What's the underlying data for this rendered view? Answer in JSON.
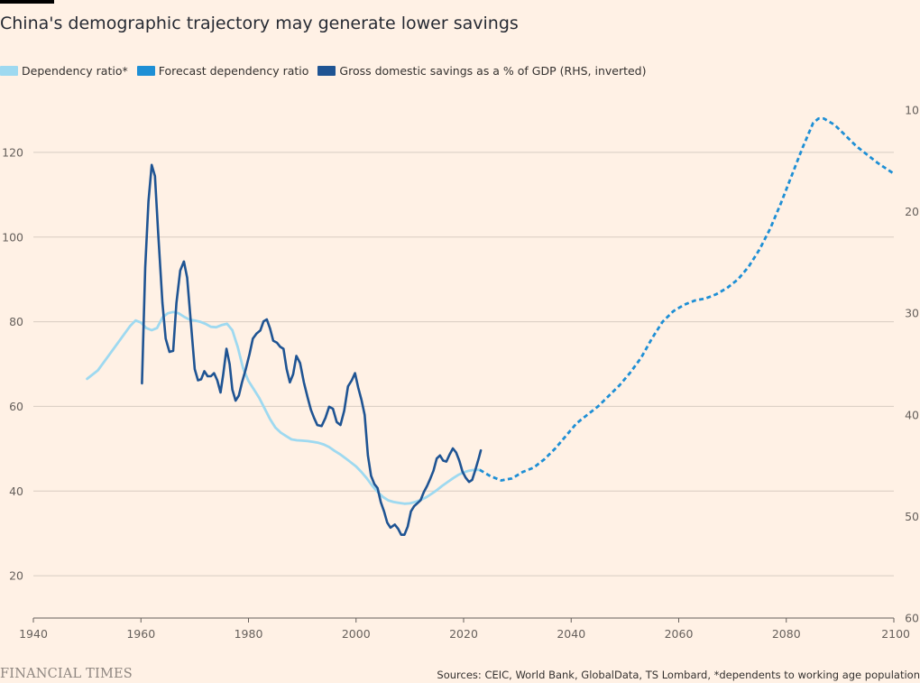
{
  "brand": {
    "logo_text": "FINANCIAL TIMES",
    "bar_color": "#000000"
  },
  "chart_data": {
    "type": "line",
    "title": "China's demographic trajectory may generate lower savings",
    "source": "Sources: CEIC, World Bank, GlobalData, TS Lombard, *dependents to working age population",
    "legend_placement": "top-left",
    "grid": "horizontal",
    "xlabel": "",
    "ylabel": "",
    "xlim": [
      1940,
      2100
    ],
    "x_ticks": [
      1940,
      1960,
      1980,
      2000,
      2020,
      2040,
      2060,
      2080,
      2100
    ],
    "y_left": {
      "lim": [
        10,
        130
      ],
      "ticks": [
        20,
        40,
        60,
        80,
        100,
        120
      ]
    },
    "y_right": {
      "lim": [
        60,
        10
      ],
      "inverted": true,
      "ticks": [
        10,
        20,
        30,
        40,
        50,
        60
      ]
    },
    "series": [
      {
        "name": "Dependency ratio*",
        "color": "#9ED9F0",
        "axis": "left",
        "style": "solid",
        "points": [
          [
            1950,
            66.5
          ],
          [
            1952,
            68.5
          ],
          [
            1954,
            72
          ],
          [
            1956,
            75.5
          ],
          [
            1958,
            79
          ],
          [
            1959,
            80.3
          ],
          [
            1960,
            79.8
          ],
          [
            1961,
            78.5
          ],
          [
            1962,
            78
          ],
          [
            1963,
            78.5
          ],
          [
            1964,
            81
          ],
          [
            1965,
            82
          ],
          [
            1966,
            82.3
          ],
          [
            1967,
            82
          ],
          [
            1968,
            81.2
          ],
          [
            1969,
            80.5
          ],
          [
            1970,
            80.3
          ],
          [
            1971,
            80
          ],
          [
            1972,
            79.5
          ],
          [
            1973,
            78.8
          ],
          [
            1974,
            78.7
          ],
          [
            1975,
            79.2
          ],
          [
            1976,
            79.5
          ],
          [
            1977,
            78
          ],
          [
            1978,
            74
          ],
          [
            1979,
            69
          ],
          [
            1980,
            66
          ],
          [
            1981,
            64
          ],
          [
            1982,
            62
          ],
          [
            1983,
            59.5
          ],
          [
            1984,
            57
          ],
          [
            1985,
            55
          ],
          [
            1986,
            53.8
          ],
          [
            1987,
            53
          ],
          [
            1988,
            52.2
          ],
          [
            1989,
            52
          ],
          [
            1990,
            51.9
          ],
          [
            1991,
            51.8
          ],
          [
            1992,
            51.6
          ],
          [
            1993,
            51.4
          ],
          [
            1994,
            51
          ],
          [
            1995,
            50.4
          ],
          [
            1996,
            49.5
          ],
          [
            1997,
            48.7
          ],
          [
            1998,
            47.8
          ],
          [
            1999,
            46.8
          ],
          [
            2000,
            45.8
          ],
          [
            2001,
            44.5
          ],
          [
            2002,
            43
          ],
          [
            2003,
            41.3
          ],
          [
            2004,
            39.8
          ],
          [
            2005,
            38.6
          ],
          [
            2006,
            37.8
          ],
          [
            2007,
            37.4
          ],
          [
            2008,
            37.2
          ],
          [
            2009,
            37
          ],
          [
            2010,
            37.1
          ],
          [
            2011,
            37.4
          ],
          [
            2012,
            37.9
          ],
          [
            2013,
            38.5
          ],
          [
            2014,
            39.3
          ],
          [
            2015,
            40.2
          ],
          [
            2016,
            41.2
          ],
          [
            2017,
            42.1
          ],
          [
            2018,
            43
          ],
          [
            2019,
            43.8
          ],
          [
            2020,
            44.4
          ],
          [
            2021,
            44.8
          ],
          [
            2022,
            45
          ],
          [
            2023,
            45
          ]
        ]
      },
      {
        "name": "Forecast dependency ratio",
        "color": "#1E8FD5",
        "axis": "left",
        "style": "dashed",
        "points": [
          [
            2023,
            45
          ],
          [
            2025,
            43.5
          ],
          [
            2027,
            42.5
          ],
          [
            2029,
            43
          ],
          [
            2031,
            44.5
          ],
          [
            2033,
            45.5
          ],
          [
            2035,
            47.5
          ],
          [
            2037,
            50
          ],
          [
            2039,
            53
          ],
          [
            2041,
            56
          ],
          [
            2043,
            58
          ],
          [
            2045,
            60
          ],
          [
            2047,
            62.5
          ],
          [
            2049,
            65
          ],
          [
            2051,
            68
          ],
          [
            2053,
            71.5
          ],
          [
            2055,
            76
          ],
          [
            2057,
            80
          ],
          [
            2059,
            82.5
          ],
          [
            2061,
            84
          ],
          [
            2063,
            85
          ],
          [
            2065,
            85.5
          ],
          [
            2067,
            86.5
          ],
          [
            2069,
            88
          ],
          [
            2071,
            90
          ],
          [
            2073,
            93
          ],
          [
            2075,
            97
          ],
          [
            2077,
            102
          ],
          [
            2079,
            108
          ],
          [
            2081,
            114.5
          ],
          [
            2083,
            121
          ],
          [
            2085,
            127
          ],
          [
            2086,
            128
          ],
          [
            2087,
            128
          ],
          [
            2089,
            126.5
          ],
          [
            2091,
            124
          ],
          [
            2093,
            121.5
          ],
          [
            2095,
            119.5
          ],
          [
            2097,
            117.5
          ],
          [
            2099,
            115.8
          ],
          [
            2100,
            115
          ]
        ]
      },
      {
        "name": "Gross domestic savings as a % of GDP (RHS, inverted)",
        "color": "#1F5493",
        "axis": "right",
        "style": "solid",
        "points": [
          [
            1960.2,
            36.9
          ],
          [
            1960.8,
            25.5
          ],
          [
            1961.4,
            19
          ],
          [
            1962,
            15.4
          ],
          [
            1962.6,
            16.5
          ],
          [
            1963.2,
            22
          ],
          [
            1964,
            29
          ],
          [
            1964.6,
            32.5
          ],
          [
            1965.3,
            33.8
          ],
          [
            1966,
            33.7
          ],
          [
            1966.6,
            29
          ],
          [
            1967.3,
            25.8
          ],
          [
            1968,
            24.9
          ],
          [
            1968.6,
            26.5
          ],
          [
            1969.3,
            31
          ],
          [
            1970,
            35.5
          ],
          [
            1970.6,
            36.6
          ],
          [
            1971.2,
            36.5
          ],
          [
            1971.8,
            35.7
          ],
          [
            1972.4,
            36.2
          ],
          [
            1973,
            36.2
          ],
          [
            1973.6,
            35.9
          ],
          [
            1974.2,
            36.6
          ],
          [
            1974.8,
            37.8
          ],
          [
            1975.3,
            36
          ],
          [
            1975.9,
            33.5
          ],
          [
            1976.5,
            35
          ],
          [
            1977,
            37.5
          ],
          [
            1977.6,
            38.6
          ],
          [
            1978.2,
            38.1
          ],
          [
            1978.8,
            36.8
          ],
          [
            1979.5,
            35.5
          ],
          [
            1980.2,
            34
          ],
          [
            1980.8,
            32.5
          ],
          [
            1981.5,
            32
          ],
          [
            1982.2,
            31.7
          ],
          [
            1982.8,
            30.8
          ],
          [
            1983.4,
            30.6
          ],
          [
            1984,
            31.5
          ],
          [
            1984.6,
            32.7
          ],
          [
            1985.3,
            32.9
          ],
          [
            1985.9,
            33.3
          ],
          [
            1986.5,
            33.5
          ],
          [
            1987.1,
            35.5
          ],
          [
            1987.7,
            36.8
          ],
          [
            1988.3,
            36
          ],
          [
            1988.9,
            34.2
          ],
          [
            1989.6,
            34.9
          ],
          [
            1990.3,
            36.8
          ],
          [
            1991,
            38.3
          ],
          [
            1991.6,
            39.5
          ],
          [
            1992.2,
            40.3
          ],
          [
            1992.8,
            41
          ],
          [
            1993.6,
            41.1
          ],
          [
            1994.3,
            40.3
          ],
          [
            1995,
            39.2
          ],
          [
            1995.7,
            39.4
          ],
          [
            1996.4,
            40.7
          ],
          [
            1997.1,
            41
          ],
          [
            1997.8,
            39.6
          ],
          [
            1998.5,
            37.2
          ],
          [
            1999.2,
            36.6
          ],
          [
            1999.8,
            35.9
          ],
          [
            2000.4,
            37.3
          ],
          [
            2001,
            38.5
          ],
          [
            2001.6,
            40
          ],
          [
            2002.2,
            44
          ],
          [
            2002.8,
            46
          ],
          [
            2003.4,
            46.8
          ],
          [
            2004,
            47.2
          ],
          [
            2004.6,
            48.6
          ],
          [
            2005.2,
            49.5
          ],
          [
            2005.8,
            50.6
          ],
          [
            2006.4,
            51.1
          ],
          [
            2007.2,
            50.8
          ],
          [
            2007.8,
            51.2
          ],
          [
            2008.4,
            51.8
          ],
          [
            2009,
            51.8
          ],
          [
            2009.6,
            51
          ],
          [
            2010.2,
            49.5
          ],
          [
            2010.8,
            49
          ],
          [
            2011.4,
            48.7
          ],
          [
            2012,
            48.4
          ],
          [
            2012.6,
            47.6
          ],
          [
            2013.2,
            47
          ],
          [
            2013.8,
            46.3
          ],
          [
            2014.4,
            45.5
          ],
          [
            2015,
            44.3
          ],
          [
            2015.6,
            44
          ],
          [
            2016.2,
            44.5
          ],
          [
            2016.8,
            44.6
          ],
          [
            2017.4,
            43.9
          ],
          [
            2018,
            43.3
          ],
          [
            2018.6,
            43.7
          ],
          [
            2019.2,
            44.5
          ],
          [
            2019.8,
            45.6
          ],
          [
            2020.4,
            46.2
          ],
          [
            2021,
            46.6
          ],
          [
            2021.6,
            46.4
          ],
          [
            2022.2,
            45.4
          ],
          [
            2022.8,
            44.3
          ],
          [
            2023.2,
            43.5
          ]
        ]
      }
    ]
  }
}
